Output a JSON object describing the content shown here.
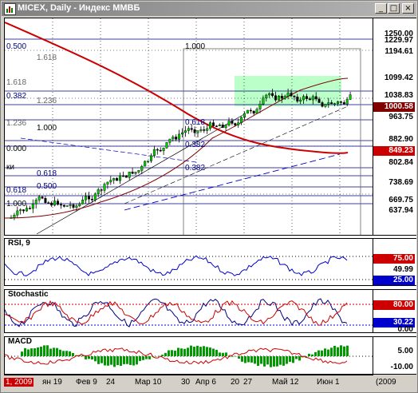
{
  "window": {
    "title": "MICEX, Daily - Индекс ММВБ",
    "buttons": {
      "minimize": "_",
      "maximize": "□",
      "close": "×"
    }
  },
  "main_chart": {
    "price_axis_labels": [
      "1250.00",
      "1229.97",
      "1194.61",
      "1099.42",
      "1038.83",
      "1000.58",
      "963.75",
      "882.90",
      "849.23",
      "802.84",
      "738.69",
      "669.75",
      "637.94"
    ],
    "current_price": "1099.42",
    "fib_labels": [
      "0.500",
      "1.618",
      "1.000",
      "1.618",
      "0.382",
      "1.236",
      "1.236",
      "1.000",
      "0.618",
      "0.000",
      "0.382",
      "0.618",
      "0.500",
      "0.382",
      "0.618",
      "1.000"
    ],
    "side_label": "ки"
  },
  "rsi": {
    "label": "RSI, 9",
    "levels": [
      "75.00",
      "49.99",
      "25.00"
    ]
  },
  "stochastic": {
    "label": "Stochastic",
    "levels": [
      "80.00",
      "30.22",
      "0.00"
    ]
  },
  "macd": {
    "label": "MACD",
    "levels": [
      "5.00",
      "-10.00"
    ]
  },
  "time_axis": {
    "labels": [
      "1, 2009",
      "ян 19",
      "Фев 9",
      "24",
      "Мар 10",
      "30",
      "Апр 6",
      "20",
      "27",
      "Май 12",
      "Июн 1"
    ],
    "status": "(2009"
  },
  "colors": {
    "accent_red": "#cc0000",
    "ma_blue": "#0000cc",
    "fib_zone": "#aaffbb",
    "panel_bg": "#ffffff"
  }
}
